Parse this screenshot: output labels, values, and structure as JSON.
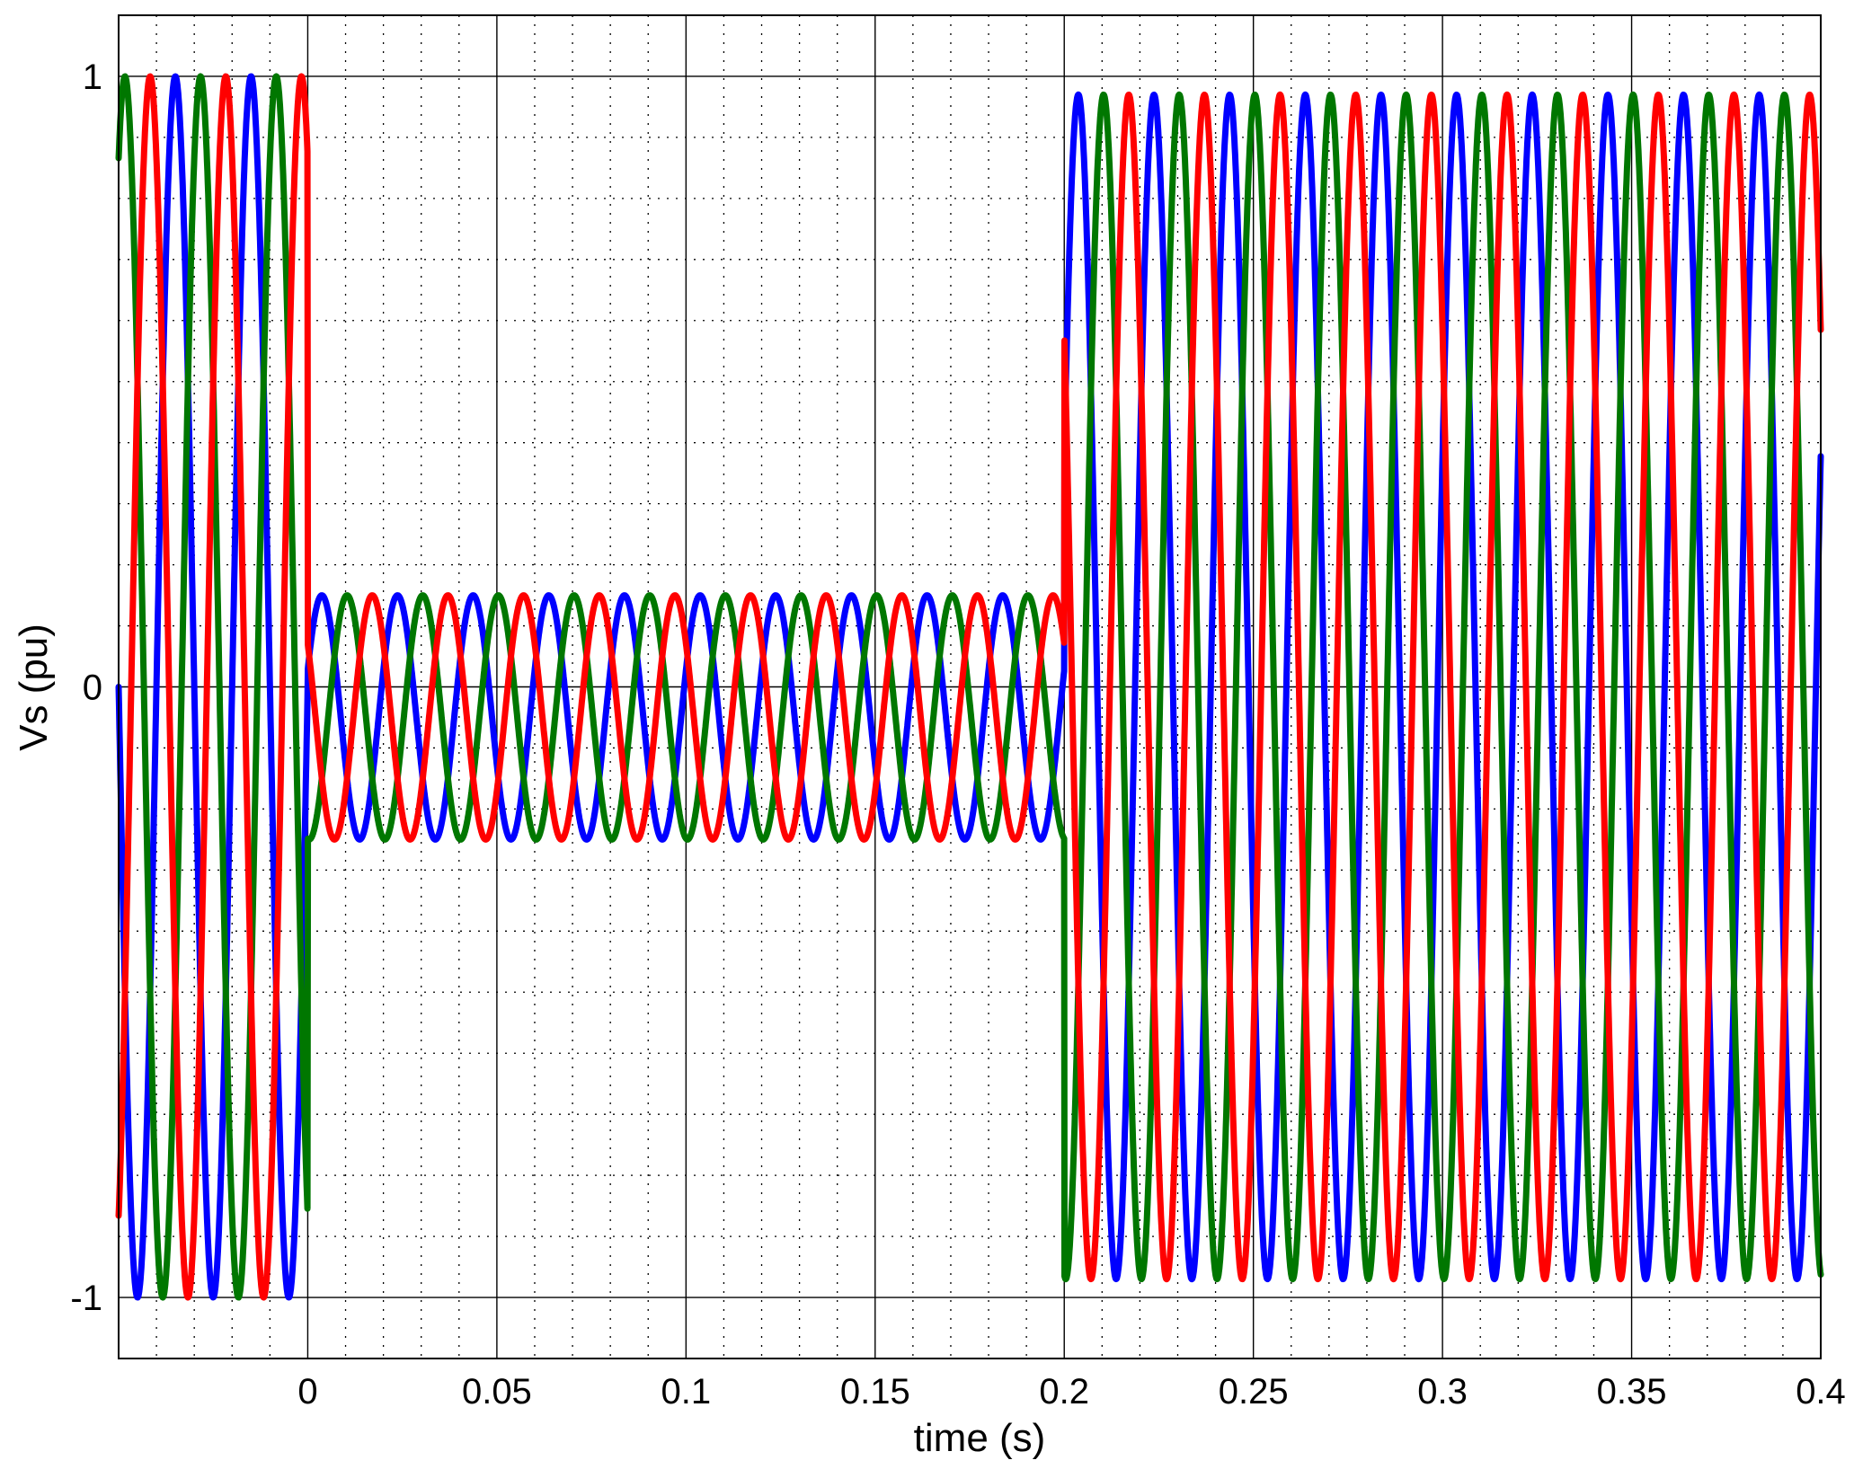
{
  "chart_data": {
    "type": "line",
    "title": "",
    "xlabel": "time (s)",
    "ylabel": "Vs (pu)",
    "xlim": [
      -0.05,
      0.4
    ],
    "ylim": [
      -1.1,
      1.1
    ],
    "x_ticks": [
      0,
      0.05,
      0.1,
      0.15,
      0.2,
      0.25,
      0.3,
      0.35,
      0.4
    ],
    "x_tick_labels": [
      "0",
      "0.05",
      "0.1",
      "0.15",
      "0.2",
      "0.25",
      "0.3",
      "0.35",
      "0.4"
    ],
    "y_ticks": [
      -1,
      0,
      1
    ],
    "y_tick_labels": [
      "-1",
      "0",
      "1"
    ],
    "grid": true,
    "legend": "none",
    "signal": {
      "frequency_hz": 50,
      "fault_start_s": 0,
      "fault_clear_s": 0.2,
      "pre_fault_amplitude": 1.0,
      "fault_amplitude": 0.2,
      "fault_offset": -0.05,
      "post_fault_amplitude": 0.97
    },
    "series": [
      {
        "color": "#0000ff",
        "phase_deg": 0
      },
      {
        "color": "#007700",
        "phase_deg": -120
      },
      {
        "color": "#ff0000",
        "phase_deg": 120
      }
    ]
  }
}
